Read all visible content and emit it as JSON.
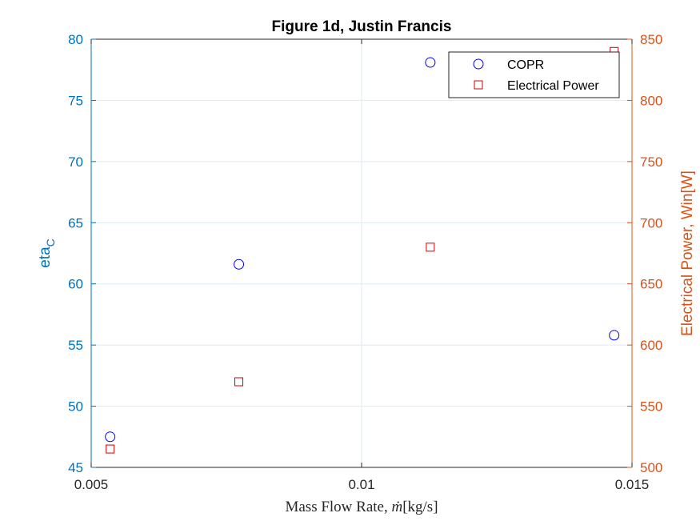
{
  "chart_data": {
    "type": "scatter",
    "title": "Figure 1d, Justin Francis",
    "xlabel": "Mass Flow Rate,",
    "xlabel_math": "ṁ",
    "xlabel_unit": "[kg/s]",
    "ylabel_left_main": "eta",
    "ylabel_left_sub": "C",
    "ylabel_right": "Electrical Power, Win[W]",
    "xlim": [
      0.005,
      0.015
    ],
    "ylim_left": [
      45,
      80
    ],
    "ylim_right": [
      500,
      850
    ],
    "x_ticks": [
      "0.005",
      "0.01",
      "0.015"
    ],
    "y_left_ticks": [
      "45",
      "50",
      "55",
      "60",
      "65",
      "70",
      "75",
      "80"
    ],
    "y_right_ticks": [
      "500",
      "550",
      "600",
      "650",
      "700",
      "750",
      "800",
      "850"
    ],
    "grid": true,
    "legend_position": "top-right",
    "series": [
      {
        "name": "COPR",
        "axis": "left",
        "marker": "circle",
        "color": "#0000FF",
        "x": [
          0.00535,
          0.00773,
          0.01127,
          0.01467
        ],
        "y": [
          47.5,
          61.6,
          78.1,
          55.8
        ]
      },
      {
        "name": "Electrical Power",
        "axis": "right",
        "marker": "square",
        "color": "#D00000",
        "x": [
          0.00535,
          0.00773,
          0.01127,
          0.01467
        ],
        "y": [
          515,
          570,
          680,
          840
        ]
      }
    ],
    "colors": {
      "left_axis": "#0072BD",
      "right_axis": "#D95319",
      "x_axis": "#262626",
      "grid": "#DDEBF2"
    }
  }
}
